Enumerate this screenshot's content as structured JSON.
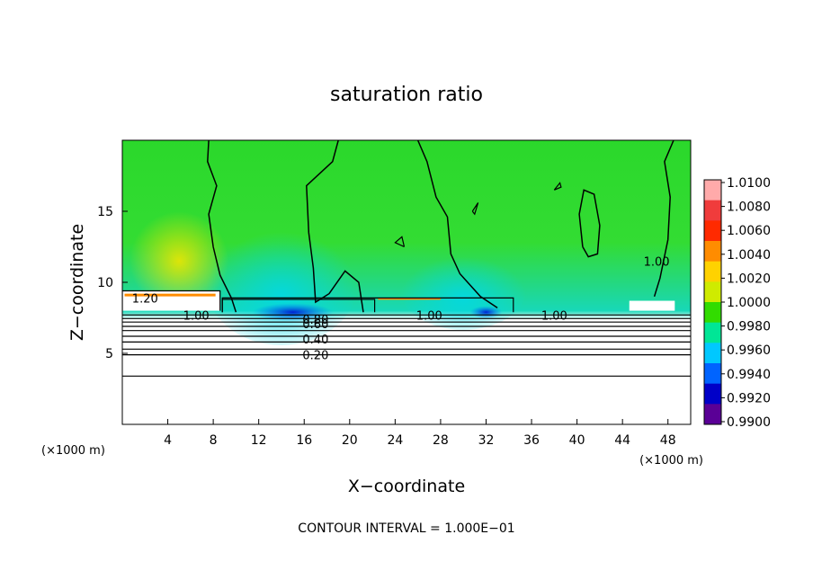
{
  "chart_data": {
    "type": "heatmap",
    "title": "saturation ratio",
    "xlabel": "X−coordinate",
    "ylabel": "Z−coordinate",
    "x_unit": "(×1000 m)",
    "y_unit": "(×1000 m)",
    "xlim": [
      0,
      50
    ],
    "ylim": [
      0,
      20
    ],
    "x_ticks": [
      {
        "value": 4,
        "label": "4"
      },
      {
        "value": 8,
        "label": "8"
      },
      {
        "value": 12,
        "label": "12"
      },
      {
        "value": 16,
        "label": "16"
      },
      {
        "value": 20,
        "label": "20"
      },
      {
        "value": 24,
        "label": "24"
      },
      {
        "value": 28,
        "label": "28"
      },
      {
        "value": 32,
        "label": "32"
      },
      {
        "value": 36,
        "label": "36"
      },
      {
        "value": 40,
        "label": "40"
      },
      {
        "value": 44,
        "label": "44"
      },
      {
        "value": 48,
        "label": "48"
      }
    ],
    "y_ticks": [
      {
        "value": 5,
        "label": "5"
      },
      {
        "value": 10,
        "label": "10"
      },
      {
        "value": 15,
        "label": "15"
      }
    ],
    "colorbar": {
      "range": [
        0.99,
        1.01
      ],
      "labels": [
        "1.0100",
        "1.0080",
        "1.0060",
        "1.0040",
        "1.0020",
        "1.0000",
        "0.9980",
        "0.9960",
        "0.9940",
        "0.9920",
        "0.9900"
      ],
      "colors": [
        "#ffaaaa",
        "#f03c3c",
        "#ff2a00",
        "#ff8c00",
        "#ffd200",
        "#cfeb00",
        "#32dc00",
        "#00e696",
        "#00c8ff",
        "#0064ff",
        "#0000c8",
        "#5a0096"
      ]
    },
    "contour_labels": [
      {
        "x": 2.0,
        "z": 8.9,
        "text": "1.20"
      },
      {
        "x": 6.5,
        "z": 7.7,
        "text": "1.00"
      },
      {
        "x": 17.0,
        "z": 7.4,
        "text": "0.80"
      },
      {
        "x": 17.0,
        "z": 7.1,
        "text": "0.60"
      },
      {
        "x": 17.0,
        "z": 6.0,
        "text": "0.40"
      },
      {
        "x": 17.0,
        "z": 4.9,
        "text": "0.20"
      },
      {
        "x": 27.0,
        "z": 7.7,
        "text": "1.00"
      },
      {
        "x": 38.0,
        "z": 7.7,
        "text": "1.00"
      },
      {
        "x": 47.0,
        "z": 11.5,
        "text": "1.00"
      }
    ],
    "note": "CONTOUR INTERVAL = 1.000E−01"
  }
}
